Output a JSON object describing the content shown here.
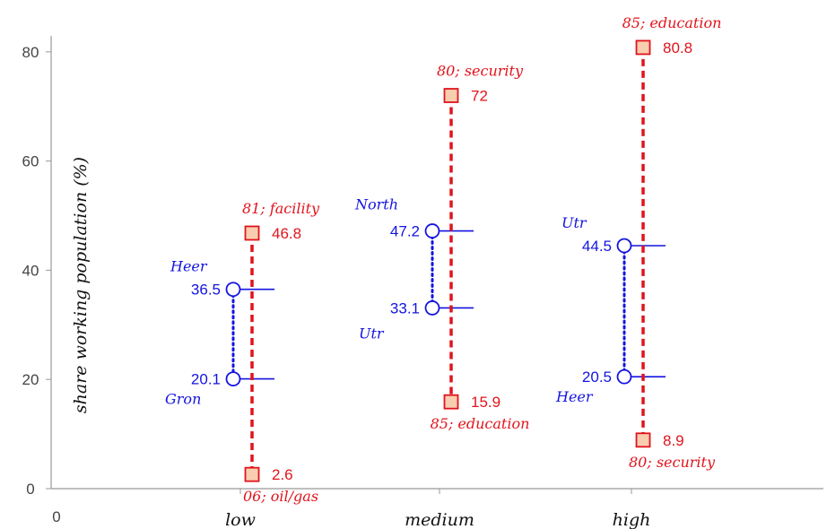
{
  "chart_data": {
    "type": "range",
    "ylabel": "share working population  (%)",
    "x_origin_label": "0",
    "categories": [
      "low",
      "medium",
      "high"
    ],
    "yticks": [
      0,
      20,
      40,
      60,
      80
    ],
    "ylim": [
      0,
      85
    ],
    "grid": false,
    "sector_range": [
      {
        "category": "low",
        "max": {
          "value": 46.8,
          "label": "81; facility"
        },
        "min": {
          "value": 2.6,
          "label": "06; oil/gas"
        }
      },
      {
        "category": "medium",
        "max": {
          "value": 72.0,
          "label": "80; security"
        },
        "min": {
          "value": 15.9,
          "label": "85; education"
        }
      },
      {
        "category": "high",
        "max": {
          "value": 80.8,
          "label": "85; education"
        },
        "min": {
          "value": 8.9,
          "label": "80; security"
        }
      }
    ],
    "region_range": [
      {
        "category": "low",
        "max": {
          "value": 36.5,
          "label": "Heer"
        },
        "min": {
          "value": 20.1,
          "label": "Gron"
        }
      },
      {
        "category": "medium",
        "max": {
          "value": 47.2,
          "label": "North"
        },
        "min": {
          "value": 33.1,
          "label": "Utr"
        }
      },
      {
        "category": "high",
        "max": {
          "value": 44.5,
          "label": "Utr"
        },
        "min": {
          "value": 20.5,
          "label": "Heer"
        }
      }
    ],
    "colors": {
      "sector": "#e0141c",
      "sector_fill": "#f9cdb0",
      "region": "#1414e0",
      "axis": "#999999"
    }
  }
}
